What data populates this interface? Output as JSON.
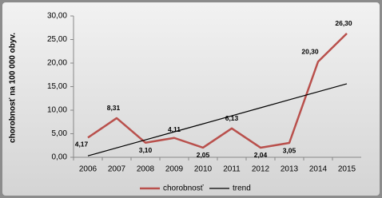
{
  "chart_data": {
    "type": "line",
    "y_label": "chorobnosť na 100 000 obyv.",
    "categories": [
      "2006",
      "2007",
      "2008",
      "2009",
      "2010",
      "2011",
      "2012",
      "2013",
      "2014",
      "2015"
    ],
    "series": [
      {
        "name": "chorobnosť",
        "color": "#b9504c",
        "values": [
          4.17,
          8.31,
          3.1,
          4.11,
          2.05,
          6.13,
          2.04,
          3.05,
          20.3,
          26.3
        ],
        "value_labels": [
          "4,17",
          "8,31",
          "3,10",
          "4,11",
          "2,05",
          "6,13",
          "2,04",
          "3,05",
          "20,30",
          "26,30"
        ]
      },
      {
        "name": "trend",
        "color": "#000000",
        "values": [
          0.3,
          2.0,
          3.7,
          5.4,
          7.1,
          8.81,
          10.51,
          12.21,
          13.91,
          15.61
        ]
      }
    ],
    "ylim": [
      0,
      30
    ],
    "yticks": [
      {
        "value": 0,
        "label": "0,00"
      },
      {
        "value": 5,
        "label": "5,00"
      },
      {
        "value": 10,
        "label": "10,00"
      },
      {
        "value": 15,
        "label": "15,00"
      },
      {
        "value": 20,
        "label": "20,00"
      },
      {
        "value": 25,
        "label": "25,00"
      },
      {
        "value": 30,
        "label": "30,00"
      }
    ],
    "grid": false
  }
}
